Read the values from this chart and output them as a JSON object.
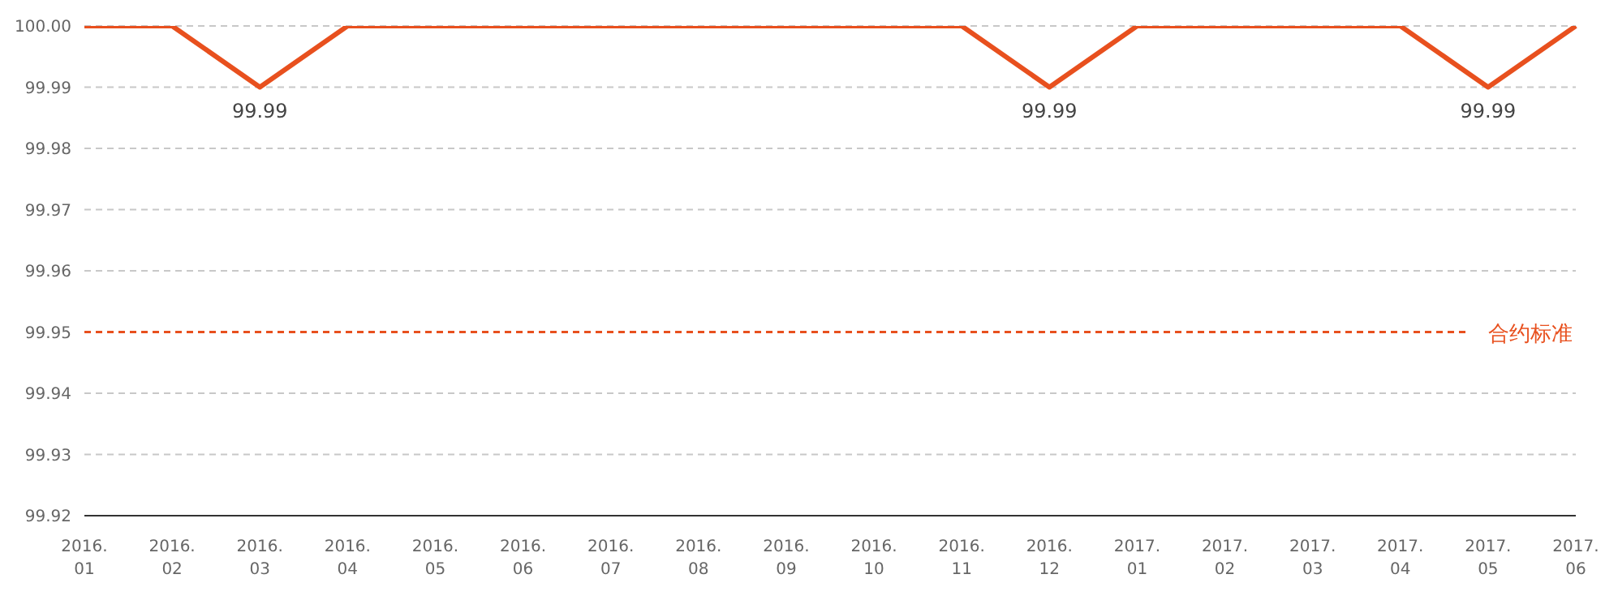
{
  "chart_data": {
    "type": "line",
    "categories": [
      "2016.01",
      "2016.02",
      "2016.03",
      "2016.04",
      "2016.05",
      "2016.06",
      "2016.07",
      "2016.08",
      "2016.09",
      "2016.10",
      "2016.11",
      "2016.12",
      "2017.01",
      "2017.02",
      "2017.03",
      "2017.04",
      "2017.05",
      "2017.06"
    ],
    "series": [
      {
        "color": "#e8501e",
        "values": [
          100,
          100,
          99.99,
          100,
          100,
          100,
          100,
          100,
          100,
          100,
          100,
          99.99,
          100,
          100,
          100,
          100,
          99.99,
          100
        ],
        "value_labels": [
          null,
          null,
          "99.99",
          null,
          null,
          null,
          null,
          null,
          null,
          null,
          null,
          "99.99",
          null,
          null,
          null,
          null,
          "99.99",
          null
        ]
      }
    ],
    "ylim": [
      99.92,
      100
    ],
    "yticks": [
      99.92,
      99.93,
      99.94,
      99.95,
      99.96,
      99.97,
      99.98,
      99.99,
      {
        "value": 100,
        "label": "100.00"
      }
    ],
    "grid": "y",
    "marker": "none",
    "line_style": "solid",
    "ref_lines": [
      {
        "axis": "y",
        "value": 99.95,
        "label": "合约标准",
        "color": "#e8501e",
        "line_style": "dashed"
      }
    ]
  }
}
